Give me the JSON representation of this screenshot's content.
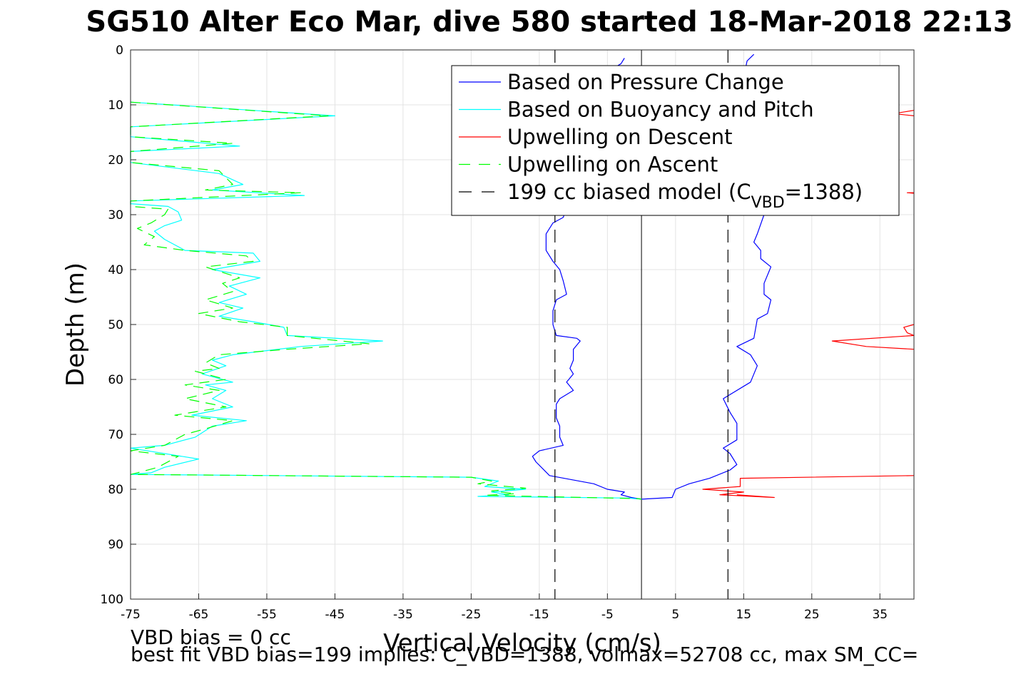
{
  "chart_data": {
    "type": "line",
    "title": "SG510 Alter Eco Mar, dive 580 started 18-Mar-2018 22:13",
    "xlabel": "Vertical Velocity (cm/s)",
    "ylabel": "Depth (m)",
    "xlim": [
      -75,
      40
    ],
    "ylim": [
      0,
      100
    ],
    "y_reversed": true,
    "grid": true,
    "legend_position": "top-right",
    "xticks": [
      -75,
      -65,
      -55,
      -45,
      -35,
      -25,
      -15,
      -5,
      5,
      15,
      25,
      35
    ],
    "yticks": [
      0,
      10,
      20,
      30,
      40,
      50,
      60,
      70,
      80,
      90,
      100
    ],
    "legend": [
      {
        "text": "Based on Pressure Change",
        "color": "#0000ff",
        "dash": "solid",
        "sub": "",
        "suffix": ""
      },
      {
        "text": "Based on Buoyancy and Pitch",
        "color": "#00ffff",
        "dash": "solid",
        "sub": "",
        "suffix": ""
      },
      {
        "text": "Upwelling on Descent",
        "color": "#ff0000",
        "dash": "solid",
        "sub": "",
        "suffix": ""
      },
      {
        "text": "Upwelling on Ascent",
        "color": "#00ff00",
        "dash": "dashed",
        "sub": "",
        "suffix": ""
      },
      {
        "text": "199 cc biased model (C",
        "color": "#000000",
        "dash": "dashed",
        "sub": "VBD",
        "suffix": "=1388)"
      }
    ],
    "series": [
      {
        "name": "Based on Pressure Change",
        "color": "#0000ff",
        "dash": "solid",
        "points": [
          [
            -2.5,
            1.5
          ],
          [
            -3,
            2.5
          ],
          [
            -5,
            4
          ],
          [
            -7,
            6
          ],
          [
            -8,
            9
          ],
          [
            -9,
            12
          ],
          [
            -10,
            15
          ],
          [
            -10.5,
            18
          ],
          [
            -11,
            21
          ],
          [
            -11,
            24
          ],
          [
            -11.5,
            27
          ],
          [
            -11,
            29
          ],
          [
            -11.5,
            30.5
          ],
          [
            -13,
            31.5
          ],
          [
            -14,
            33.5
          ],
          [
            -14,
            36.5
          ],
          [
            -13,
            38.5
          ],
          [
            -12,
            40
          ],
          [
            -11.5,
            42
          ],
          [
            -11,
            44.5
          ],
          [
            -12.5,
            45.5
          ],
          [
            -13,
            47.5
          ],
          [
            -13,
            50
          ],
          [
            -12.5,
            52
          ],
          [
            -9.5,
            52.5
          ],
          [
            -9,
            53
          ],
          [
            -10,
            54.5
          ],
          [
            -10,
            56.5
          ],
          [
            -10.5,
            58
          ],
          [
            -10,
            59
          ],
          [
            -11,
            60.5
          ],
          [
            -10,
            62
          ],
          [
            -12,
            63.5
          ],
          [
            -12.5,
            64.5
          ],
          [
            -12.5,
            67
          ],
          [
            -12,
            68.5
          ],
          [
            -12,
            70.5
          ],
          [
            -11.5,
            72
          ],
          [
            -15,
            73
          ],
          [
            -16,
            74
          ],
          [
            -15.5,
            75
          ],
          [
            -13.5,
            77.5
          ],
          [
            -7,
            79
          ],
          [
            -5,
            80
          ],
          [
            -2.5,
            80.5
          ],
          [
            -3,
            81
          ],
          [
            -1.5,
            81.5
          ],
          [
            0,
            81.8
          ],
          [
            4.5,
            81.5
          ],
          [
            5,
            80
          ],
          [
            7,
            79
          ],
          [
            10,
            78
          ],
          [
            13,
            76.5
          ],
          [
            14,
            75.5
          ],
          [
            13,
            73.5
          ],
          [
            12,
            72.5
          ],
          [
            14,
            71
          ],
          [
            14,
            68
          ],
          [
            13,
            66
          ],
          [
            12,
            63.5
          ],
          [
            16,
            60.5
          ],
          [
            17,
            57.5
          ],
          [
            16,
            55.5
          ],
          [
            14,
            54
          ],
          [
            16.5,
            52.5
          ],
          [
            17,
            49
          ],
          [
            18.5,
            48
          ],
          [
            19,
            45.5
          ],
          [
            18,
            44.5
          ],
          [
            18,
            42.5
          ],
          [
            19,
            39.5
          ],
          [
            17.5,
            38
          ],
          [
            17.5,
            36.5
          ],
          [
            16.5,
            35
          ],
          [
            17,
            33.5
          ],
          [
            18,
            30
          ],
          [
            16,
            27
          ],
          [
            16,
            24
          ],
          [
            15,
            21
          ],
          [
            15,
            15
          ],
          [
            14.5,
            10
          ],
          [
            15,
            5
          ],
          [
            15.5,
            2
          ],
          [
            16.5,
            0.8
          ]
        ]
      },
      {
        "name": "Based on Buoyancy and Pitch",
        "color": "#00ffff",
        "dash": "solid",
        "points": [
          [
            -75,
            9.5
          ],
          [
            -45,
            12
          ],
          [
            -75,
            14
          ],
          [
            -75,
            15.8
          ],
          [
            -59,
            17.5
          ],
          [
            -75,
            18.5
          ],
          [
            -75,
            20.5
          ],
          [
            -62,
            22.5
          ],
          [
            -58.5,
            24.5
          ],
          [
            -63,
            25.5
          ],
          [
            -49.5,
            26.5
          ],
          [
            -75,
            27.5
          ],
          [
            -75,
            28
          ],
          [
            -69.5,
            28.5
          ],
          [
            -68,
            29.5
          ],
          [
            -67.5,
            31
          ],
          [
            -70,
            32
          ],
          [
            -71.5,
            33
          ],
          [
            -70,
            34.5
          ],
          [
            -67,
            36.5
          ],
          [
            -57,
            37
          ],
          [
            -56,
            38.5
          ],
          [
            -63,
            40
          ],
          [
            -56,
            41.5
          ],
          [
            -60.5,
            43
          ],
          [
            -58,
            44.5
          ],
          [
            -62,
            46
          ],
          [
            -58.5,
            47
          ],
          [
            -62,
            48.5
          ],
          [
            -57,
            49.5
          ],
          [
            -52.5,
            50.5
          ],
          [
            -52,
            52
          ],
          [
            -38,
            53
          ],
          [
            -50,
            54
          ],
          [
            -60,
            55.5
          ],
          [
            -63,
            56.5
          ],
          [
            -61,
            57.5
          ],
          [
            -64.5,
            59
          ],
          [
            -60,
            60.5
          ],
          [
            -64,
            61
          ],
          [
            -61,
            62
          ],
          [
            -63,
            63.5
          ],
          [
            -60,
            65
          ],
          [
            -66,
            66.5
          ],
          [
            -58,
            67.5
          ],
          [
            -63,
            68.5
          ],
          [
            -65.5,
            70.5
          ],
          [
            -70,
            72
          ],
          [
            -75,
            72.5
          ],
          [
            -65,
            74.5
          ],
          [
            -70,
            76
          ],
          [
            -72,
            77
          ],
          [
            -75,
            77.3
          ],
          [
            -25,
            77.8
          ],
          [
            -21,
            78.5
          ],
          [
            -23,
            79.5
          ],
          [
            -17,
            80
          ],
          [
            -22,
            80.5
          ],
          [
            -19.5,
            81
          ],
          [
            -24,
            81.3
          ],
          [
            -2,
            81.6
          ],
          [
            0,
            81.8
          ]
        ]
      },
      {
        "name": "Upwelling on Ascent",
        "color": "#00ff00",
        "dash": "dashed",
        "points": [
          [
            -75,
            9.5
          ],
          [
            -46,
            12
          ],
          [
            -75,
            14
          ],
          [
            -75,
            15.8
          ],
          [
            -60,
            17
          ],
          [
            -75,
            18.5
          ],
          [
            -75,
            20.5
          ],
          [
            -62,
            22
          ],
          [
            -60,
            24.5
          ],
          [
            -64,
            25.5
          ],
          [
            -50,
            26
          ],
          [
            -75,
            27.5
          ],
          [
            -75,
            28.5
          ],
          [
            -69.5,
            29
          ],
          [
            -70,
            30
          ],
          [
            -72,
            31.5
          ],
          [
            -74,
            32.5
          ],
          [
            -71.5,
            34
          ],
          [
            -73,
            35.5
          ],
          [
            -67,
            36.5
          ],
          [
            -58,
            37.5
          ],
          [
            -57,
            38.5
          ],
          [
            -64,
            39.5
          ],
          [
            -59,
            41.5
          ],
          [
            -61.5,
            42.5
          ],
          [
            -60,
            44
          ],
          [
            -64,
            45.5
          ],
          [
            -60,
            47
          ],
          [
            -65,
            48
          ],
          [
            -59,
            49.5
          ],
          [
            -52,
            50.5
          ],
          [
            -52,
            52
          ],
          [
            -40,
            53.5
          ],
          [
            -52,
            54.5
          ],
          [
            -62,
            55.5
          ],
          [
            -64,
            57
          ],
          [
            -62,
            58
          ],
          [
            -65.5,
            58.5
          ],
          [
            -61,
            60
          ],
          [
            -67,
            61
          ],
          [
            -62,
            62
          ],
          [
            -67,
            63.5
          ],
          [
            -61,
            65
          ],
          [
            -68.5,
            66.5
          ],
          [
            -60,
            67.5
          ],
          [
            -64,
            69
          ],
          [
            -67,
            70
          ],
          [
            -70,
            72
          ],
          [
            -75,
            73
          ],
          [
            -68,
            74
          ],
          [
            -71,
            76
          ],
          [
            -74,
            77
          ],
          [
            -75,
            77.3
          ],
          [
            -25,
            77.8
          ],
          [
            -22,
            78.5
          ],
          [
            -24,
            79
          ],
          [
            -17,
            79.8
          ],
          [
            -22,
            80.3
          ],
          [
            -18.5,
            80.8
          ],
          [
            -23,
            81.1
          ],
          [
            -0.5,
            81.7
          ],
          [
            0,
            81.8
          ]
        ]
      },
      {
        "name": "Upwelling on Descent",
        "color": "#ff0000",
        "dash": "solid",
        "segments": [
          [
            [
              40,
              11
            ],
            [
              37,
              11.6
            ],
            [
              40,
              12
            ]
          ],
          [
            [
              40,
              26
            ],
            [
              39,
              26
            ],
            [
              40,
              26.1
            ]
          ],
          [
            [
              40,
              50
            ],
            [
              38.5,
              50.5
            ],
            [
              39,
              51.5
            ],
            [
              40,
              52
            ],
            [
              28,
              53
            ],
            [
              33,
              54
            ],
            [
              40,
              54.5
            ]
          ],
          [
            [
              40,
              77.5
            ],
            [
              14.5,
              78
            ],
            [
              14.5,
              79.5
            ],
            [
              9,
              80
            ],
            [
              15,
              80.5
            ],
            [
              11.5,
              81
            ],
            [
              19.5,
              81.5
            ],
            [
              14,
              81
            ]
          ]
        ]
      },
      {
        "name": "199 cc biased model (C",
        "color": "#000000",
        "dash": "dashed",
        "segments": [
          [
            [
              -12.7,
              0
            ],
            [
              -12.7,
              100
            ]
          ],
          [
            [
              12.7,
              0
            ],
            [
              12.7,
              100
            ]
          ]
        ]
      }
    ],
    "zero_line": {
      "x": 0,
      "color": "#000000"
    },
    "notes": [
      "VBD bias = 0 cc",
      "best fit VBD bias=199 implies: C_VBD=1388, volmax=52708 cc, max SM_CC="
    ]
  }
}
